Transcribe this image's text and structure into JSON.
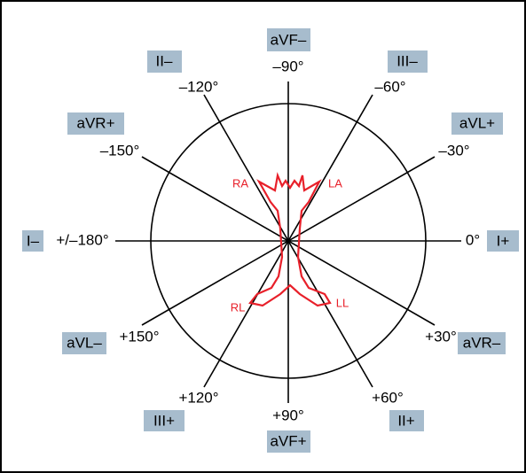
{
  "axes": [
    {
      "angle": "0°",
      "lead_pos": "I+",
      "lead_neg": "I–",
      "angle_opp": "+/–180°"
    },
    {
      "angle": "+30°",
      "lead_pos": "aVR–",
      "lead_neg": "aVR+",
      "angle_opp": "–150°"
    },
    {
      "angle": "+60°",
      "lead_pos": "II+",
      "lead_neg": "II–",
      "angle_opp": "–120°"
    },
    {
      "angle": "+90°",
      "lead_pos": "aVF+",
      "lead_neg": "aVF–",
      "angle_opp": "–90°"
    },
    {
      "angle": "+120°",
      "lead_pos": "III+",
      "lead_neg": "III–",
      "angle_opp": "–60°"
    },
    {
      "angle": "+150°",
      "lead_pos": "aVL–",
      "lead_neg": "aVL+",
      "angle_opp": "–30°"
    }
  ],
  "body": {
    "ra": "RA",
    "la": "LA",
    "rl": "RL",
    "ll": "LL"
  }
}
